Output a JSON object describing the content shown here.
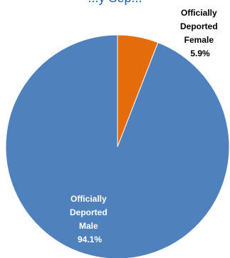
{
  "chart_data": {
    "type": "pie",
    "title": "...y Sep...",
    "colors": [
      "#e46c0a",
      "#4f81bd"
    ],
    "slices": [
      {
        "label_lines": [
          "Officially",
          "Deported",
          "Female"
        ],
        "value": 5.9,
        "value_label": "5.9%",
        "color": "#e46c0a"
      },
      {
        "label_lines": [
          "Officially",
          "Deported",
          "Male"
        ],
        "value": 94.1,
        "value_label": "94.1%",
        "color": "#4f81bd"
      }
    ]
  }
}
